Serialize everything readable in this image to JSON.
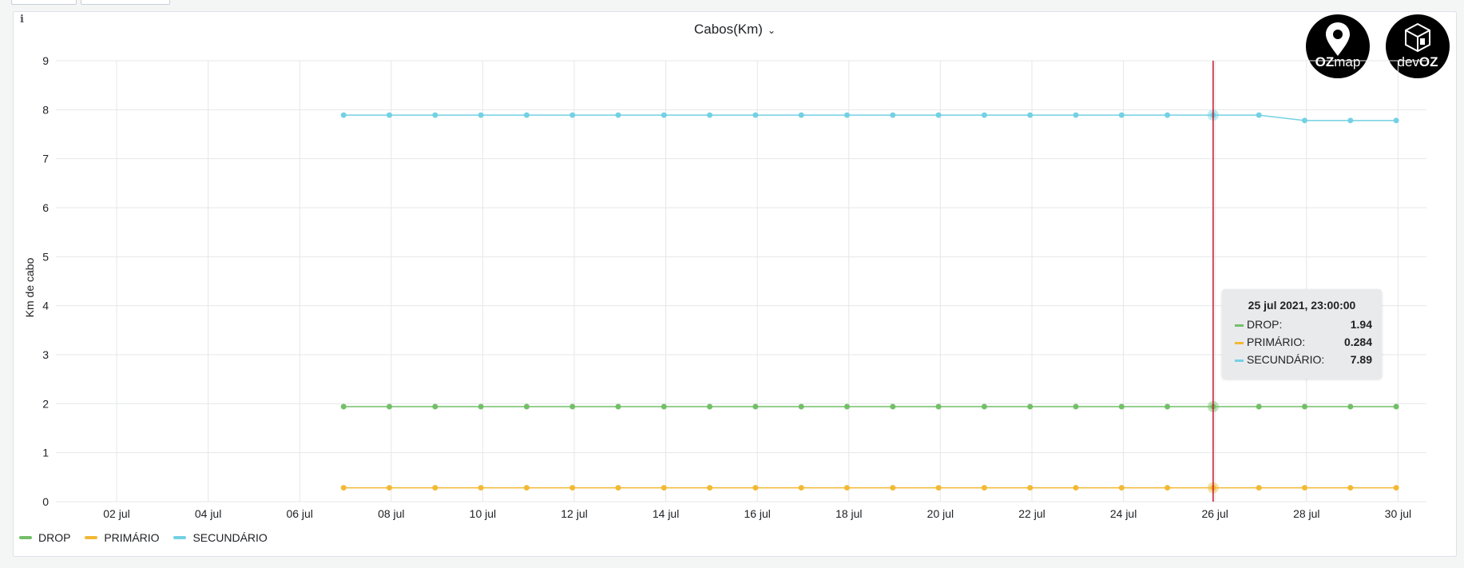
{
  "panel": {
    "title": "Cabos(Km)",
    "info_symbol": "i"
  },
  "logos": [
    {
      "name": "OZmap",
      "text_bold": "OZ",
      "text_light": "map"
    },
    {
      "name": "devOZ",
      "text_light": "dev",
      "text_bold": "OZ"
    }
  ],
  "tooltip": {
    "title": "25 jul 2021, 23:00:00",
    "rows": [
      {
        "label": "DROP:",
        "value": "1.94",
        "color": "#73bf69"
      },
      {
        "label": "PRIMÁRIO:",
        "value": "0.284",
        "color": "#f2b935"
      },
      {
        "label": "SECUNDÁRIO:",
        "value": "7.89",
        "color": "#73d1e3"
      }
    ]
  },
  "chart_data": {
    "type": "line",
    "ylabel": "Km de cabo",
    "ylim": [
      0,
      9
    ],
    "y_ticks": [
      "0",
      "1",
      "2",
      "3",
      "4",
      "5",
      "6",
      "7",
      "8",
      "9"
    ],
    "x_ticks": [
      "02 jul",
      "04 jul",
      "06 jul",
      "08 jul",
      "10 jul",
      "12 jul",
      "14 jul",
      "16 jul",
      "18 jul",
      "20 jul",
      "22 jul",
      "24 jul",
      "26 jul",
      "28 jul",
      "30 jul"
    ],
    "x": [
      "06 jul",
      "07 jul",
      "08 jul",
      "09 jul",
      "10 jul",
      "11 jul",
      "12 jul",
      "13 jul",
      "14 jul",
      "15 jul",
      "16 jul",
      "17 jul",
      "18 jul",
      "19 jul",
      "20 jul",
      "21 jul",
      "22 jul",
      "23 jul",
      "24 jul",
      "25 jul",
      "26 jul",
      "27 jul",
      "28 jul",
      "29 jul"
    ],
    "series": [
      {
        "name": "DROP",
        "color": "#73bf69",
        "values": [
          1.94,
          1.94,
          1.94,
          1.94,
          1.94,
          1.94,
          1.94,
          1.94,
          1.94,
          1.94,
          1.94,
          1.94,
          1.94,
          1.94,
          1.94,
          1.94,
          1.94,
          1.94,
          1.94,
          1.94,
          1.94,
          1.94,
          1.94,
          1.94
        ]
      },
      {
        "name": "PRIMÁRIO",
        "color": "#f2b935",
        "values": [
          0.284,
          0.284,
          0.284,
          0.284,
          0.284,
          0.284,
          0.284,
          0.284,
          0.284,
          0.284,
          0.284,
          0.284,
          0.284,
          0.284,
          0.284,
          0.284,
          0.284,
          0.284,
          0.284,
          0.284,
          0.284,
          0.284,
          0.284,
          0.284
        ]
      },
      {
        "name": "SECUNDÁRIO",
        "color": "#73d1e3",
        "values": [
          7.89,
          7.89,
          7.89,
          7.89,
          7.89,
          7.89,
          7.89,
          7.89,
          7.89,
          7.89,
          7.89,
          7.89,
          7.89,
          7.89,
          7.89,
          7.89,
          7.89,
          7.89,
          7.89,
          7.89,
          7.89,
          7.78,
          7.78,
          7.78
        ]
      }
    ],
    "hover_x": "25 jul",
    "cursor_color": "#c4162a",
    "grid": true,
    "legend": "bottom-left"
  }
}
